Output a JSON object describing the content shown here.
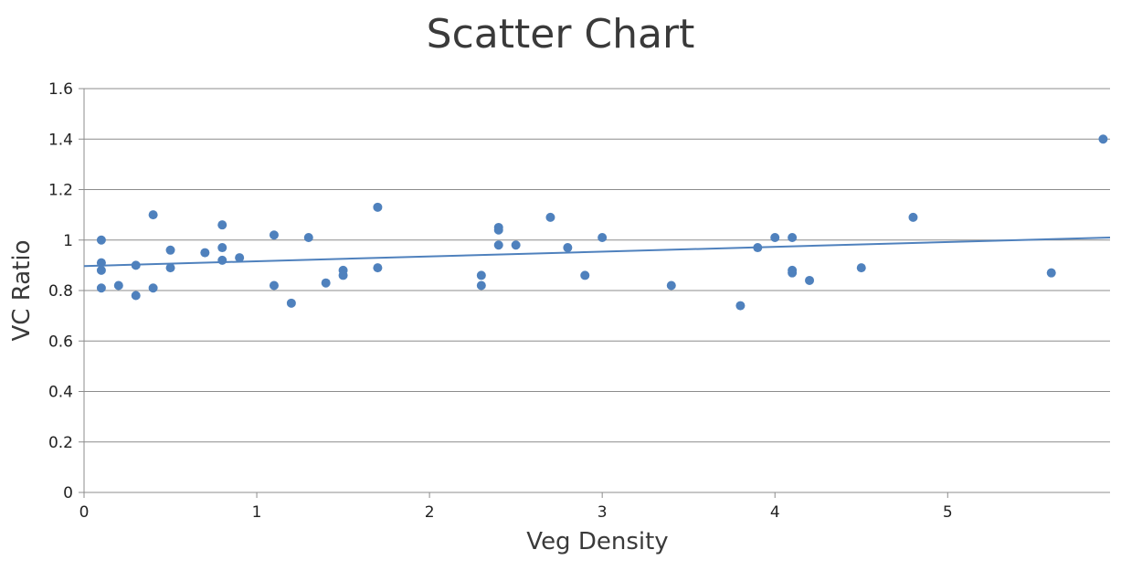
{
  "chart_data": {
    "type": "scatter",
    "title": "Scatter Chart",
    "xlabel": "Veg Density",
    "ylabel": "VC Ratio",
    "xlim": [
      0,
      5.94
    ],
    "ylim": [
      0,
      1.6
    ],
    "xticks": [
      0,
      1,
      2,
      3,
      4,
      5
    ],
    "yticks": [
      0,
      0.2,
      0.4,
      0.6,
      0.8,
      1,
      1.2,
      1.4,
      1.6
    ],
    "grid": "horizontal",
    "legend": "none",
    "colors": {
      "points": "#4f81bd",
      "trendline": "#4f81bd",
      "grid": "#8c8c8c"
    },
    "trendline": {
      "type": "linear",
      "x": [
        0,
        5.94
      ],
      "y": [
        0.897,
        1.01
      ]
    },
    "points": [
      {
        "x": 0.1,
        "y": 1.0
      },
      {
        "x": 0.1,
        "y": 0.91
      },
      {
        "x": 0.1,
        "y": 0.88
      },
      {
        "x": 0.1,
        "y": 0.81
      },
      {
        "x": 0.2,
        "y": 0.82
      },
      {
        "x": 0.3,
        "y": 0.9
      },
      {
        "x": 0.3,
        "y": 0.78
      },
      {
        "x": 0.4,
        "y": 1.1
      },
      {
        "x": 0.4,
        "y": 0.81
      },
      {
        "x": 0.5,
        "y": 0.96
      },
      {
        "x": 0.5,
        "y": 0.89
      },
      {
        "x": 0.7,
        "y": 0.95
      },
      {
        "x": 0.8,
        "y": 1.06
      },
      {
        "x": 0.8,
        "y": 0.97
      },
      {
        "x": 0.8,
        "y": 0.92
      },
      {
        "x": 0.9,
        "y": 0.93
      },
      {
        "x": 1.1,
        "y": 1.02
      },
      {
        "x": 1.1,
        "y": 0.82
      },
      {
        "x": 1.2,
        "y": 0.75
      },
      {
        "x": 1.3,
        "y": 1.01
      },
      {
        "x": 1.4,
        "y": 0.83
      },
      {
        "x": 1.5,
        "y": 0.88
      },
      {
        "x": 1.5,
        "y": 0.86
      },
      {
        "x": 1.7,
        "y": 1.13
      },
      {
        "x": 1.7,
        "y": 0.89
      },
      {
        "x": 2.3,
        "y": 0.86
      },
      {
        "x": 2.3,
        "y": 0.82
      },
      {
        "x": 2.4,
        "y": 1.05
      },
      {
        "x": 2.4,
        "y": 1.04
      },
      {
        "x": 2.4,
        "y": 0.98
      },
      {
        "x": 2.5,
        "y": 0.98
      },
      {
        "x": 2.7,
        "y": 1.09
      },
      {
        "x": 2.8,
        "y": 0.97
      },
      {
        "x": 2.9,
        "y": 0.86
      },
      {
        "x": 3.0,
        "y": 1.01
      },
      {
        "x": 3.4,
        "y": 0.82
      },
      {
        "x": 3.8,
        "y": 0.74
      },
      {
        "x": 3.9,
        "y": 0.97
      },
      {
        "x": 4.0,
        "y": 1.01
      },
      {
        "x": 4.1,
        "y": 1.01
      },
      {
        "x": 4.1,
        "y": 0.88
      },
      {
        "x": 4.1,
        "y": 0.87
      },
      {
        "x": 4.2,
        "y": 0.84
      },
      {
        "x": 4.5,
        "y": 0.89
      },
      {
        "x": 4.8,
        "y": 1.09
      },
      {
        "x": 5.6,
        "y": 0.87
      },
      {
        "x": 5.9,
        "y": 1.4
      }
    ]
  }
}
